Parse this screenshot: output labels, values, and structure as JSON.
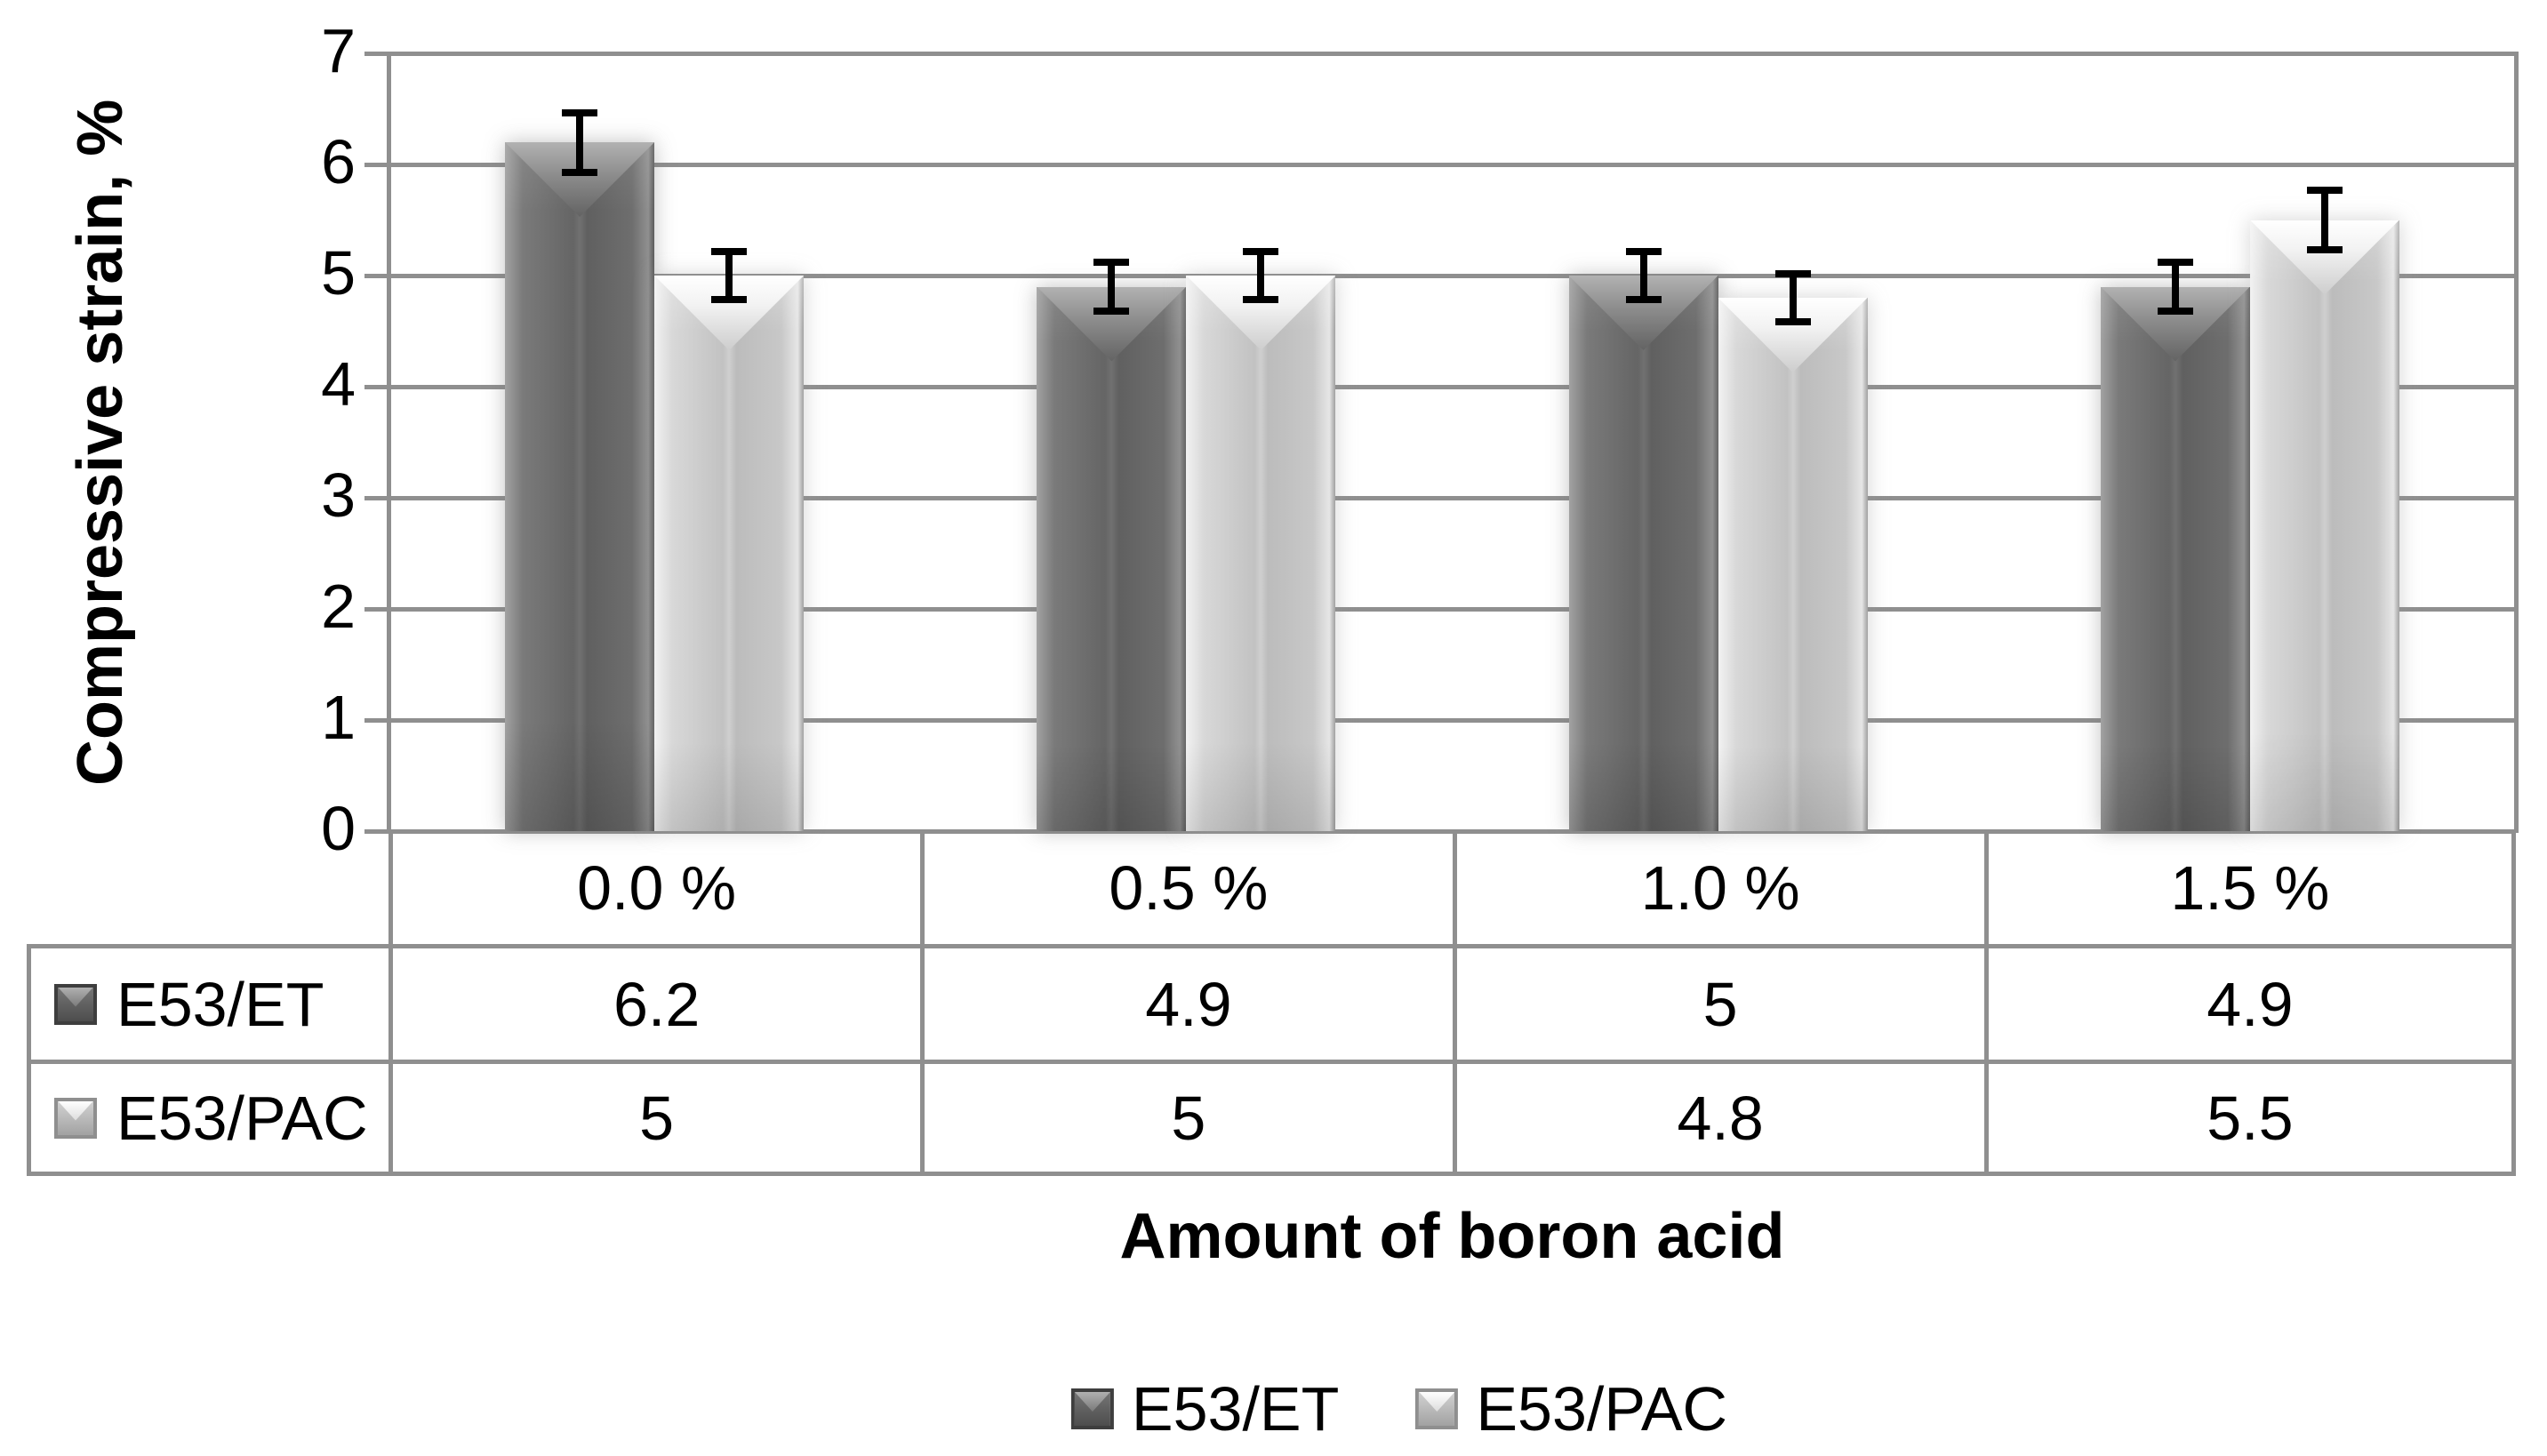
{
  "chart_data": {
    "type": "bar",
    "title": "",
    "xlabel": "Amount of boron acid",
    "ylabel": "Compressive strain, %",
    "ylim": [
      0,
      7
    ],
    "ytick_interval": 1,
    "yticks": [
      "0",
      "1",
      "2",
      "3",
      "4",
      "5",
      "6",
      "7"
    ],
    "grid": "horizontal gridlines at every integer, gray",
    "legend_position": "bottom",
    "categories": [
      "0.0 %",
      "0.5 %",
      "1.0 %",
      "1.5 %"
    ],
    "series": [
      {
        "name": "E53/ET",
        "style": "dark",
        "values": [
          6.2,
          4.9,
          5,
          4.9
        ],
        "errors": [
          0.3,
          0.25,
          0.25,
          0.25
        ]
      },
      {
        "name": "E53/PAC",
        "style": "light",
        "values": [
          5,
          5,
          4.8,
          5.5
        ],
        "errors": [
          0.25,
          0.25,
          0.25,
          0.3
        ]
      }
    ],
    "data_table": {
      "shown": true,
      "rows": [
        {
          "label": "E53/ET",
          "cells": [
            "6.2",
            "4.9",
            "5",
            "4.9"
          ]
        },
        {
          "label": "E53/PAC",
          "cells": [
            "5",
            "5",
            "4.8",
            "5.5"
          ]
        }
      ]
    }
  },
  "colors": {
    "background": "#ffffff",
    "grid_line": "#8f8f8f",
    "table_border": "#8f8f8f",
    "text": "#000000",
    "error_bar": "#000000",
    "bar_dark_base": "#6a6a6a",
    "bar_light_base": "#c8c8c8"
  }
}
